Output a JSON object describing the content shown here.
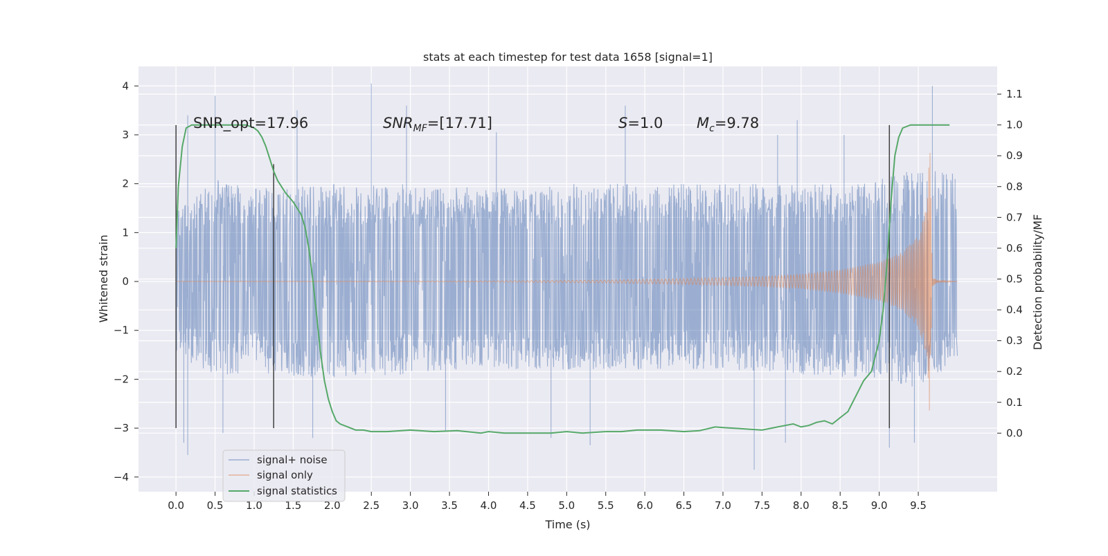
{
  "chart_data": {
    "type": "line",
    "title": "stats at each timestep for test data 1658 [signal=1]",
    "xlabel": "Time (s)",
    "ylabel": "Whitened strain",
    "y2label": "Detection probability/MF",
    "xlim": [
      -0.48,
      10.51
    ],
    "ylim": [
      -4.3,
      4.4
    ],
    "y2lim": [
      -0.19,
      1.19
    ],
    "x_ticks": [
      0.0,
      0.5,
      1.0,
      1.5,
      2.0,
      2.5,
      3.0,
      3.5,
      4.0,
      4.5,
      5.0,
      5.5,
      6.0,
      6.5,
      7.0,
      7.5,
      8.0,
      8.5,
      9.0,
      9.5
    ],
    "x_tick_labels": [
      "0.0",
      "0.5",
      "1.0",
      "1.5",
      "2.0",
      "2.5",
      "3.0",
      "3.5",
      "4.0",
      "4.5",
      "5.0",
      "5.5",
      "6.0",
      "6.5",
      "7.0",
      "7.5",
      "8.0",
      "8.5",
      "9.0",
      "9.5"
    ],
    "y_ticks": [
      4,
      3,
      2,
      1,
      0,
      -1,
      -2,
      -3,
      -4
    ],
    "y_tick_labels": [
      "4",
      "3",
      "2",
      "1",
      "0",
      "−1",
      "−2",
      "−3",
      "−4"
    ],
    "y2_ticks": [
      1.1,
      1.0,
      0.9,
      0.8,
      0.7,
      0.6,
      0.5,
      0.4,
      0.3,
      0.2,
      0.1,
      0.0
    ],
    "y2_tick_labels": [
      "1.1",
      "1.0",
      "0.9",
      "0.8",
      "0.7",
      "0.6",
      "0.5",
      "0.4",
      "0.3",
      "0.2",
      "0.1",
      "0.0"
    ],
    "grid": true,
    "legend_placement": "lower left",
    "colors": {
      "background": "#eaeaf2",
      "grid": "#ffffff",
      "noise": "#4c72b0",
      "signal": "#dd8452",
      "stats": "#55a868",
      "markers": "#404040"
    },
    "series": [
      {
        "name": "signal+ noise",
        "axis": "left",
        "description_values": "dense noise trace, roughly uniform amplitude",
        "x_range": [
          0.0,
          10.0
        ],
        "envelope_upper": [
          [
            0.0,
            1.5
          ],
          [
            0.5,
            2.1
          ],
          [
            1.0,
            1.9
          ],
          [
            2.0,
            2.0
          ],
          [
            3.0,
            2.0
          ],
          [
            4.0,
            1.9
          ],
          [
            5.0,
            2.0
          ],
          [
            6.0,
            2.0
          ],
          [
            7.0,
            2.0
          ],
          [
            8.0,
            2.0
          ],
          [
            9.0,
            2.1
          ],
          [
            9.5,
            2.3
          ],
          [
            10.0,
            2.2
          ]
        ],
        "envelope_lower": [
          [
            0.0,
            -1.6
          ],
          [
            0.5,
            -1.9
          ],
          [
            1.0,
            -1.9
          ],
          [
            2.0,
            -2.0
          ],
          [
            3.0,
            -1.9
          ],
          [
            4.0,
            -1.8
          ],
          [
            5.0,
            -1.8
          ],
          [
            6.0,
            -1.8
          ],
          [
            7.0,
            -1.8
          ],
          [
            8.0,
            -1.9
          ],
          [
            9.0,
            -2.0
          ],
          [
            9.5,
            -2.2
          ],
          [
            10.0,
            -1.6
          ]
        ],
        "peaks": [
          [
            0.5,
            3.8
          ],
          [
            0.15,
            3.4
          ],
          [
            1.55,
            3.5
          ],
          [
            2.5,
            4.05
          ],
          [
            2.95,
            3.6
          ],
          [
            4.1,
            3.05
          ],
          [
            5.75,
            3.6
          ],
          [
            7.7,
            3.0
          ],
          [
            7.95,
            3.3
          ],
          [
            8.55,
            3.0
          ],
          [
            9.68,
            4.0
          ],
          [
            0.1,
            -3.3
          ],
          [
            0.15,
            -3.55
          ],
          [
            0.6,
            -3.1
          ],
          [
            1.75,
            -3.2
          ],
          [
            3.45,
            -3.05
          ],
          [
            4.8,
            -3.2
          ],
          [
            5.3,
            -3.35
          ],
          [
            7.4,
            -3.85
          ],
          [
            7.8,
            -3.3
          ],
          [
            9.13,
            -3.4
          ],
          [
            9.45,
            -3.3
          ]
        ]
      },
      {
        "name": "signal only",
        "axis": "left",
        "description_values": "chirp with growing amplitude, merger near 9.65 s",
        "amplitude": [
          [
            0.0,
            0.0
          ],
          [
            4.0,
            0.01
          ],
          [
            5.5,
            0.03
          ],
          [
            6.5,
            0.06
          ],
          [
            7.5,
            0.1
          ],
          [
            8.0,
            0.15
          ],
          [
            8.5,
            0.24
          ],
          [
            9.0,
            0.4
          ],
          [
            9.3,
            0.6
          ],
          [
            9.5,
            0.95
          ],
          [
            9.6,
            1.5
          ],
          [
            9.65,
            2.85
          ],
          [
            9.68,
            0.1
          ],
          [
            9.75,
            0.02
          ],
          [
            10.0,
            0.0
          ]
        ]
      },
      {
        "name": "signal statistics",
        "axis": "right",
        "x": [
          0.0,
          0.03,
          0.08,
          0.13,
          0.2,
          0.3,
          0.5,
          0.7,
          0.9,
          1.0,
          1.05,
          1.1,
          1.15,
          1.2,
          1.25,
          1.3,
          1.4,
          1.5,
          1.6,
          1.65,
          1.7,
          1.75,
          1.8,
          1.85,
          1.9,
          1.95,
          2.0,
          2.05,
          2.1,
          2.2,
          2.3,
          2.4,
          2.5,
          2.7,
          3.0,
          3.3,
          3.6,
          3.9,
          4.0,
          4.2,
          4.5,
          4.8,
          5.0,
          5.2,
          5.5,
          5.7,
          5.9,
          6.2,
          6.5,
          6.7,
          6.9,
          7.0,
          7.2,
          7.5,
          7.7,
          7.8,
          7.9,
          8.0,
          8.1,
          8.2,
          8.3,
          8.4,
          8.5,
          8.6,
          8.7,
          8.8,
          8.9,
          9.0,
          9.05,
          9.1,
          9.15,
          9.2,
          9.25,
          9.3,
          9.4,
          9.5,
          9.7,
          9.9
        ],
        "y": [
          0.6,
          0.8,
          0.93,
          0.99,
          1.0,
          1.0,
          1.0,
          1.0,
          1.0,
          0.99,
          0.98,
          0.96,
          0.93,
          0.89,
          0.85,
          0.82,
          0.78,
          0.75,
          0.71,
          0.67,
          0.6,
          0.5,
          0.38,
          0.26,
          0.17,
          0.11,
          0.07,
          0.04,
          0.03,
          0.02,
          0.01,
          0.01,
          0.005,
          0.005,
          0.01,
          0.005,
          0.008,
          0.0,
          0.005,
          0.0,
          0.0,
          0.0,
          0.005,
          0.0,
          0.005,
          0.005,
          0.01,
          0.01,
          0.005,
          0.008,
          0.02,
          0.018,
          0.015,
          0.01,
          0.02,
          0.025,
          0.03,
          0.02,
          0.025,
          0.035,
          0.04,
          0.03,
          0.05,
          0.07,
          0.12,
          0.17,
          0.2,
          0.3,
          0.4,
          0.55,
          0.75,
          0.9,
          0.96,
          0.99,
          1.0,
          1.0,
          1.0,
          1.0
        ]
      }
    ],
    "vertical_markers": [
      {
        "x": 0.0,
        "y_from": -3.0,
        "y_to": 3.2
      },
      {
        "x": 1.25,
        "y_from": -3.0,
        "y_to": 2.4
      },
      {
        "x": 9.13,
        "y_from": -3.0,
        "y_to": 3.2
      }
    ],
    "annotations": [
      {
        "text": "SNR_opt=17.96",
        "x": 0.2,
        "y": 3.1
      },
      {
        "text_parts": [
          "SNR",
          "MF",
          "=[17.71]"
        ],
        "x": 2.6,
        "y": 3.1
      },
      {
        "text_parts": [
          "S",
          "=1.0"
        ],
        "x": 5.6,
        "y": 3.1
      },
      {
        "text_parts": [
          "M",
          "c",
          "=9.78"
        ],
        "x": 6.6,
        "y": 3.1
      }
    ],
    "legend": [
      {
        "label": "signal+ noise",
        "color_key": "noise"
      },
      {
        "label": "signal only",
        "color_key": "signal"
      },
      {
        "label": "signal statistics",
        "color_key": "stats"
      }
    ]
  }
}
